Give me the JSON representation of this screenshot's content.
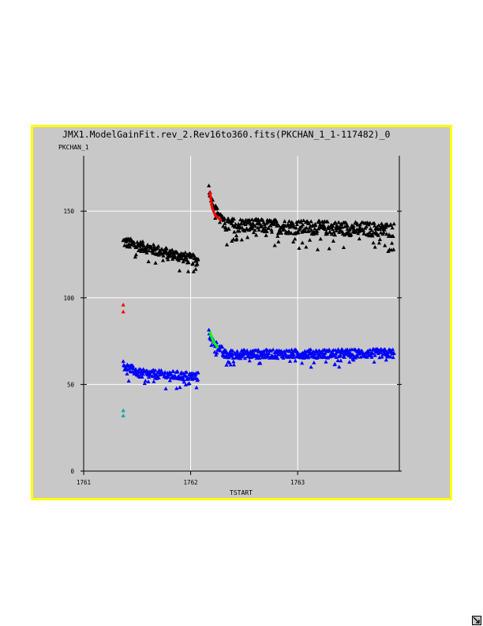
{
  "window": {
    "border_color": "#ffff00",
    "background_color": "#c8c8c8",
    "resize_icon": "resize-corner-icon"
  },
  "chart_data": {
    "type": "scatter",
    "title": "JMX1.ModelGainFit.rev_2.Rev16to360.fits(PKCHAN_1_1-117482)_0",
    "xlabel": "TSTART",
    "ylabel": "PKCHAN_1",
    "xlim": [
      1761,
      1763.95
    ],
    "ylim": [
      0,
      182
    ],
    "xticks": [
      1761,
      1762,
      1763
    ],
    "xtick_labels": [
      "1761",
      "1762",
      "1763"
    ],
    "yticks": [
      0,
      50,
      100,
      150
    ],
    "ytick_labels": [
      "0",
      "50",
      "100",
      "150"
    ],
    "grid": true,
    "colors": {
      "upper_points": "#000000",
      "upper_fit": "#ff0000",
      "lower_points": "#0000ff",
      "lower_fit": "#00ff00",
      "outlier_upper": "#ff0000",
      "outlier_lower": "#00aaaa",
      "grid": "#ffffff",
      "axis": "#000000"
    },
    "series": [
      {
        "role": "upper_points",
        "marker": "triangle",
        "segments": [
          {
            "x_start": 1761.37,
            "x_end": 1762.07,
            "y_start": 133,
            "y_end": 122,
            "scatter": 3
          },
          {
            "x_start": 1762.17,
            "x_end": 1762.3,
            "y_start": 166,
            "y_end": 146,
            "scatter": 2
          },
          {
            "x_start": 1762.3,
            "x_end": 1763.9,
            "y_start": 143,
            "y_end": 140,
            "scatter": 4
          }
        ]
      },
      {
        "role": "upper_fit",
        "points": [
          [
            1761.38,
            133.5
          ],
          [
            1761.5,
            131
          ],
          [
            1761.65,
            128
          ],
          [
            1761.8,
            126
          ],
          [
            1761.95,
            123.5
          ],
          [
            1762.08,
            121
          ],
          [
            1762.18,
            161
          ],
          [
            1762.2,
            152
          ],
          [
            1762.23,
            147.5
          ],
          [
            1762.28,
            145
          ],
          [
            1762.35,
            143.5
          ],
          [
            1762.5,
            142.5
          ],
          [
            1762.8,
            141.5
          ],
          [
            1763.2,
            141
          ],
          [
            1763.6,
            140.5
          ],
          [
            1763.9,
            140.5
          ]
        ]
      },
      {
        "role": "lower_points",
        "marker": "triangle",
        "segments": [
          {
            "x_start": 1761.37,
            "x_end": 1761.5,
            "y_start": 63,
            "y_end": 58,
            "scatter": 2.5
          },
          {
            "x_start": 1761.5,
            "x_end": 1762.07,
            "y_start": 57,
            "y_end": 55,
            "scatter": 2.5
          },
          {
            "x_start": 1762.17,
            "x_end": 1762.3,
            "y_start": 82,
            "y_end": 70,
            "scatter": 2
          },
          {
            "x_start": 1762.3,
            "x_end": 1763.9,
            "y_start": 68,
            "y_end": 68.5,
            "scatter": 2.5
          }
        ]
      },
      {
        "role": "lower_fit",
        "points": [
          [
            1761.38,
            61
          ],
          [
            1761.45,
            58.5
          ],
          [
            1761.55,
            57
          ],
          [
            1761.7,
            56.5
          ],
          [
            1761.85,
            56
          ],
          [
            1762.08,
            55.5
          ],
          [
            1762.18,
            80
          ],
          [
            1762.21,
            75
          ],
          [
            1762.25,
            71.5
          ],
          [
            1762.32,
            69.5
          ],
          [
            1762.45,
            68
          ],
          [
            1762.7,
            67.5
          ],
          [
            1763.0,
            67.5
          ],
          [
            1763.4,
            68
          ],
          [
            1763.7,
            68.5
          ],
          [
            1763.9,
            68.5
          ]
        ]
      },
      {
        "role": "outliers",
        "marker": "triangle",
        "points": [
          [
            1761.37,
            96,
            "upper"
          ],
          [
            1761.37,
            92,
            "upper"
          ],
          [
            1761.37,
            35,
            "lower"
          ],
          [
            1761.37,
            32,
            "lower"
          ]
        ]
      }
    ]
  }
}
